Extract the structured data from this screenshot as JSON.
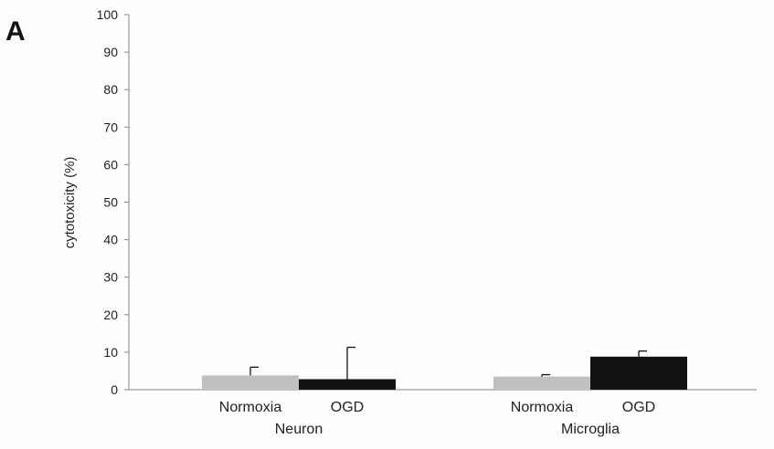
{
  "panel_label": "A",
  "chart_data": {
    "type": "bar",
    "title": "",
    "ylabel": "cytotoxicity (%)",
    "xlabel": "",
    "ylim": [
      0,
      100
    ],
    "yticks": [
      0,
      10,
      20,
      30,
      40,
      50,
      60,
      70,
      80,
      90,
      100
    ],
    "grid": false,
    "groups": [
      {
        "name": "Neuron",
        "bars": [
          {
            "label": "Normoxia",
            "value": 3.8,
            "error": 2.2,
            "color": "#c0c0c0"
          },
          {
            "label": "OGD",
            "value": 2.8,
            "error": 8.5,
            "color": "#111111"
          }
        ]
      },
      {
        "name": "Microglia",
        "bars": [
          {
            "label": "Normoxia",
            "value": 3.5,
            "error": 0.5,
            "color": "#c0c0c0"
          },
          {
            "label": "OGD",
            "value": 8.8,
            "error": 1.5,
            "color": "#111111"
          }
        ]
      }
    ]
  }
}
